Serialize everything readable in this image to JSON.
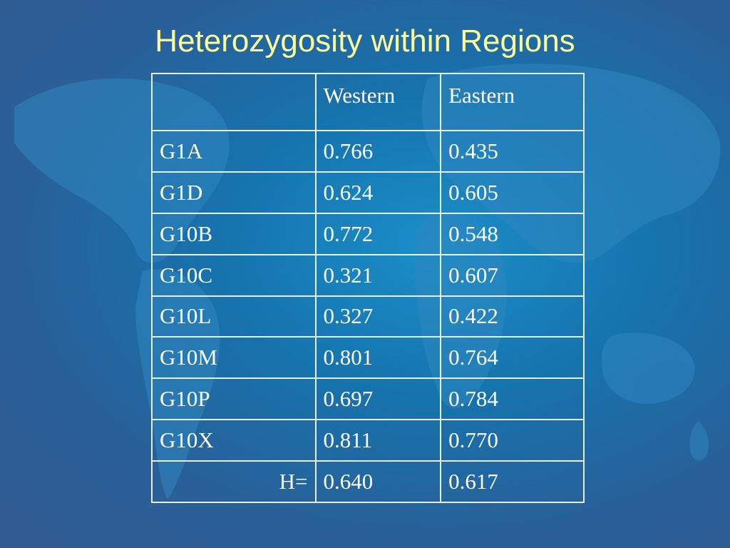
{
  "slide": {
    "title": "Heterozygosity within Regions"
  },
  "table": {
    "headers": [
      "",
      "Western",
      "Eastern"
    ],
    "rows": [
      {
        "locus": "G1A",
        "western": "0.766",
        "eastern": "0.435"
      },
      {
        "locus": "G1D",
        "western": "0.624",
        "eastern": "0.605"
      },
      {
        "locus": "G10B",
        "western": "0.772",
        "eastern": "0.548"
      },
      {
        "locus": "G10C",
        "western": "0.321",
        "eastern": "0.607"
      },
      {
        "locus": "G10L",
        "western": "0.327",
        "eastern": "0.422"
      },
      {
        "locus": "G10M",
        "western": "0.801",
        "eastern": "0.764"
      },
      {
        "locus": "G10P",
        "western": "0.697",
        "eastern": "0.784"
      },
      {
        "locus": "G10X",
        "western": "0.811",
        "eastern": "0.770"
      }
    ],
    "total": {
      "label": "H=",
      "western": "0.640",
      "eastern": "0.617"
    }
  },
  "colors": {
    "title": "#ffff99",
    "text": "#ffffff",
    "background": "#1673ad"
  }
}
